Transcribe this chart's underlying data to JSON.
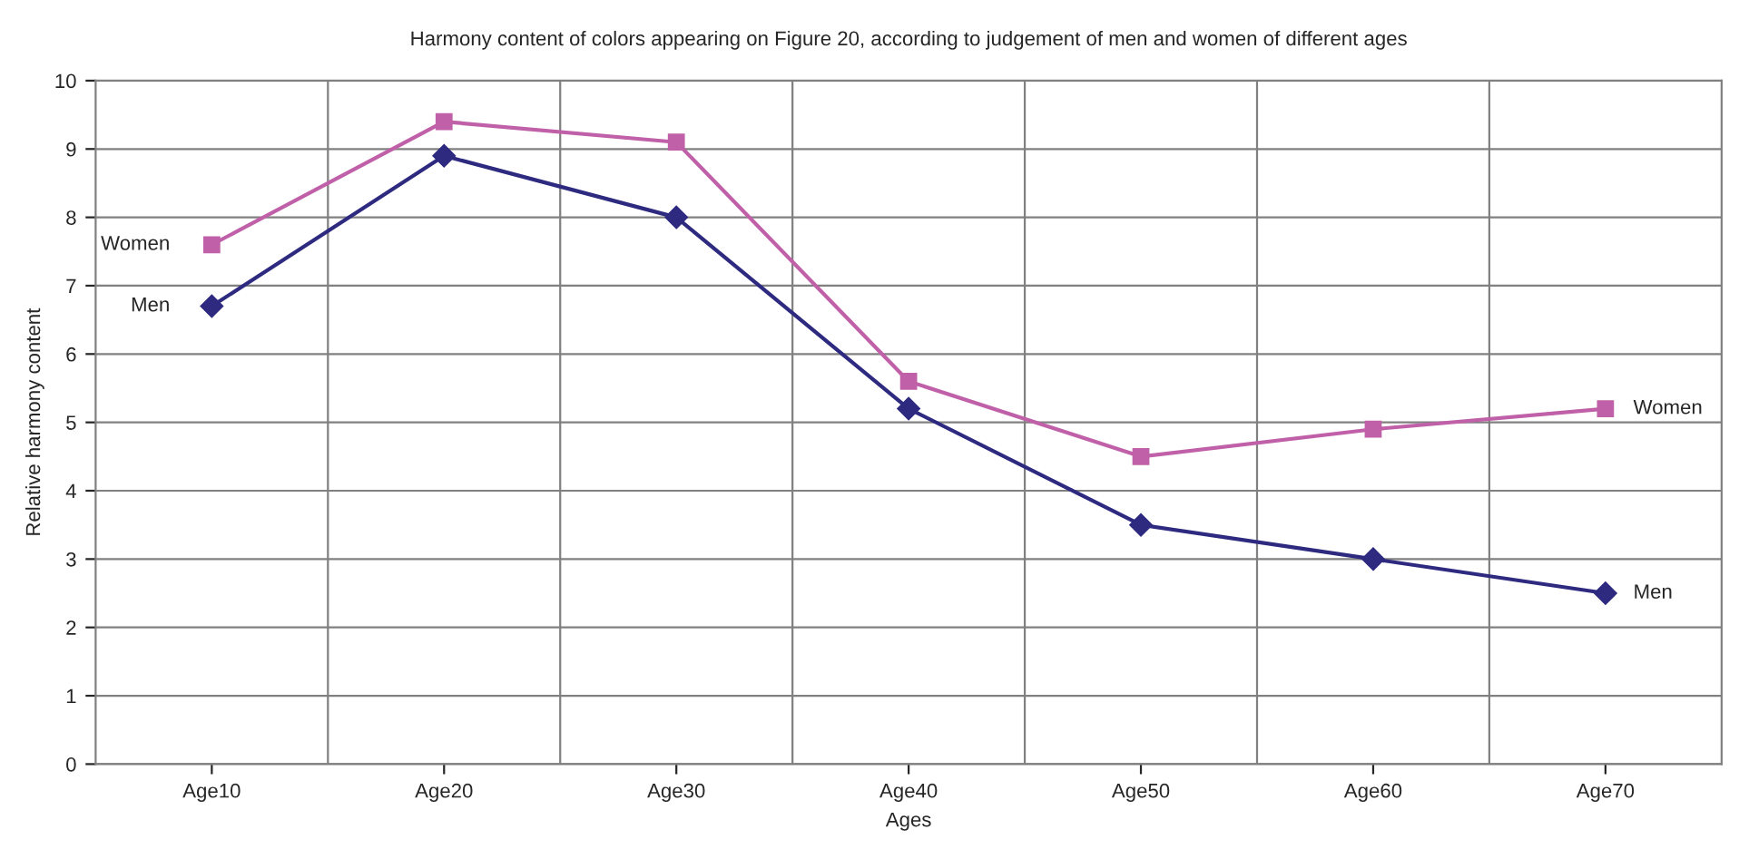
{
  "chart_data": {
    "type": "line",
    "title": "Harmony content of colors appearing on Figure 20, according to judgement of men and women of different ages",
    "xlabel": "Ages",
    "ylabel": "Relative harmony content",
    "categories": [
      "Age10",
      "Age20",
      "Age30",
      "Age40",
      "Age50",
      "Age60",
      "Age70"
    ],
    "series": [
      {
        "name": "Women",
        "color": "#c060a8",
        "marker": "square",
        "values": [
          7.6,
          9.4,
          9.1,
          5.6,
          4.5,
          4.9,
          5.2
        ]
      },
      {
        "name": "Men",
        "color": "#2e2a80",
        "marker": "diamond",
        "values": [
          6.7,
          8.9,
          8.0,
          5.2,
          3.5,
          3.0,
          2.5
        ]
      }
    ],
    "ylim": [
      0,
      10
    ],
    "yticks": [
      0,
      1,
      2,
      3,
      4,
      5,
      6,
      7,
      8,
      9,
      10
    ],
    "grid": true,
    "legend": false,
    "line_style": "solid"
  }
}
